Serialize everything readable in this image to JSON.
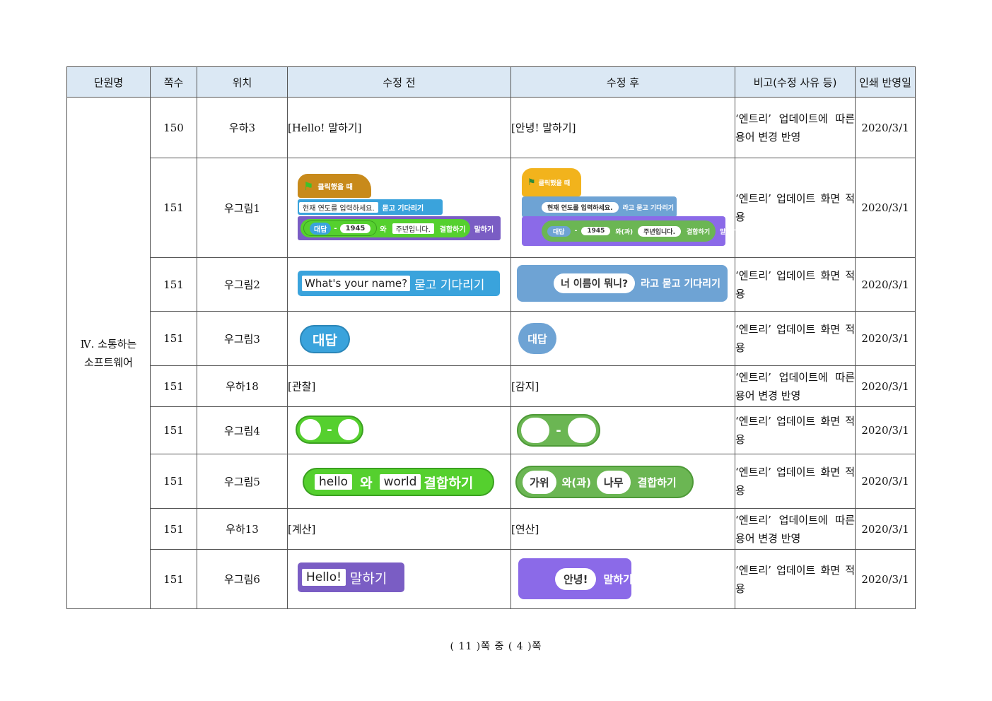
{
  "headers": [
    "단원명",
    "쪽수",
    "위치",
    "수정 전",
    "수정 후",
    "비고(수정 사유 등)",
    "인쇄 반영일"
  ],
  "unit": {
    "line1": "Ⅳ. 소통하는",
    "line2": "소프트웨어"
  },
  "rows": [
    {
      "page": "150",
      "pos": "우하3",
      "before": "[Hello! 말하기]",
      "after": "[안녕! 말하기]",
      "note": "‘엔트리’ 업데이트에 따른 용어 변경 반영",
      "date": "2020/3/1"
    },
    {
      "page": "151",
      "pos": "우그림1",
      "note": "‘엔트리’ 업데이트 화면 적용",
      "date": "2020/3/1"
    },
    {
      "page": "151",
      "pos": "우그림2",
      "note": "‘엔트리’ 업데이트 화면 적용",
      "date": "2020/3/1"
    },
    {
      "page": "151",
      "pos": "우그림3",
      "note": "‘엔트리’ 업데이트 화면 적용",
      "date": "2020/3/1"
    },
    {
      "page": "151",
      "pos": "우하18",
      "before": "[관찰]",
      "after": "[감지]",
      "note": "‘엔트리’ 업데이트에 따른 용어 변경 반영",
      "date": "2020/3/1"
    },
    {
      "page": "151",
      "pos": "우그림4",
      "note": "‘엔트리’ 업데이트 화면 적용",
      "date": "2020/3/1"
    },
    {
      "page": "151",
      "pos": "우그림5",
      "note": "‘엔트리’ 업데이트 화면 적용",
      "date": "2020/3/1"
    },
    {
      "page": "151",
      "pos": "우하13",
      "before": "[계산]",
      "after": "[연산]",
      "note": "‘엔트리’ 업데이트에 따른 용어 변경 반영",
      "date": "2020/3/1"
    },
    {
      "page": "151",
      "pos": "우그림6",
      "note": "‘엔트리’ 업데이트 화면 적용",
      "date": "2020/3/1"
    }
  ],
  "blocks": {
    "r1_before": {
      "hat": "클릭했을 때",
      "ask_text": "현재 연도를 입력하세요.",
      "ask": "묻고 기다리기",
      "answer": "대답",
      "minus": "-",
      "num": "1945",
      "wa": "와",
      "suffix": "주년입니다.",
      "join": "결합하기",
      "say": "말하기"
    },
    "r1_after": {
      "hat": "클릭했을 때",
      "ask_text": "현재 연도를 입력하세요.",
      "ask": "라고 묻고 기다리기",
      "answer": "대답",
      "minus": "-",
      "num": "1945",
      "wa": "와(과)",
      "suffix": "주년입니다.",
      "join": "결합하기",
      "say": "말하기"
    },
    "r2_before": {
      "text": "What's your name?",
      "label": "묻고 기다리기"
    },
    "r2_after": {
      "text": "너 이름이 뭐니?",
      "label": "라고 묻고 기다리기"
    },
    "r3_before": {
      "label": "대답"
    },
    "r3_after": {
      "label": "대답"
    },
    "r5_before": {
      "minus": "-"
    },
    "r5_after": {
      "minus": "-"
    },
    "r6_before": {
      "a": "hello",
      "wa": "와",
      "b": "world",
      "join": "결합하기"
    },
    "r6_after": {
      "a": "가위",
      "wa": "와(과)",
      "b": "나무",
      "join": "결합하기"
    },
    "r8_before": {
      "text": "Hello!",
      "label": "말하기"
    },
    "r8_after": {
      "text": "안녕!",
      "label": "말하기"
    }
  },
  "footer": {
    "total": "11",
    "current": "4",
    "text": "( 11 )쪽 중 ( 4 )쪽"
  },
  "colors": {
    "header_bg": "#dbe8f4",
    "scratch_orange": "#c88a1b",
    "scratch_blue": "#3aa3dc",
    "scratch_purple": "#7a5dc4",
    "scratch_green": "#55d02e",
    "entry_yellow": "#f2b31c",
    "entry_blue": "#6ea3d4",
    "entry_green": "#6bb653",
    "entry_purple": "#8b6ae8"
  }
}
